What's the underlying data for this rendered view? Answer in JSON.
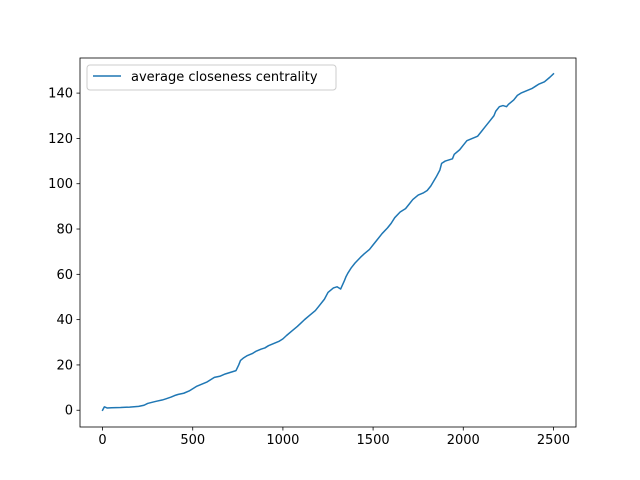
{
  "chart_data": {
    "type": "line",
    "title": "",
    "xlabel": "",
    "ylabel": "",
    "xlim": [
      -125,
      2625
    ],
    "ylim": [
      -7.4,
      155.5
    ],
    "x_ticks": [
      0,
      500,
      1000,
      1500,
      2000,
      2500
    ],
    "y_ticks": [
      0,
      20,
      40,
      60,
      80,
      100,
      120,
      140
    ],
    "x_tick_labels": [
      "0",
      "500",
      "1000",
      "1500",
      "2000",
      "2500"
    ],
    "y_tick_labels": [
      "0",
      "20",
      "40",
      "60",
      "80",
      "100",
      "120",
      "140"
    ],
    "grid": false,
    "legend_position": "upper-left",
    "series": [
      {
        "name": "average closeness centrality",
        "color": "#1f77b4",
        "x": [
          0,
          10,
          25,
          50,
          100,
          150,
          200,
          230,
          250,
          280,
          300,
          330,
          350,
          380,
          400,
          420,
          450,
          480,
          500,
          520,
          550,
          580,
          600,
          620,
          650,
          680,
          700,
          720,
          740,
          755,
          760,
          765,
          780,
          800,
          830,
          850,
          880,
          900,
          920,
          950,
          980,
          1000,
          1020,
          1050,
          1080,
          1100,
          1120,
          1150,
          1180,
          1200,
          1220,
          1230,
          1250,
          1280,
          1300,
          1320,
          1340,
          1350,
          1360,
          1380,
          1400,
          1430,
          1450,
          1480,
          1500,
          1520,
          1550,
          1580,
          1600,
          1620,
          1650,
          1680,
          1700,
          1720,
          1750,
          1780,
          1800,
          1820,
          1850,
          1870,
          1880,
          1900,
          1920,
          1940,
          1950,
          1980,
          2000,
          2020,
          2050,
          2080,
          2100,
          2120,
          2150,
          2170,
          2180,
          2200,
          2220,
          2240,
          2250,
          2280,
          2300,
          2320,
          2350,
          2380,
          2400,
          2420,
          2450,
          2480,
          2500
        ],
        "y": [
          0,
          1.5,
          1,
          1.1,
          1.2,
          1.4,
          1.7,
          2.2,
          3,
          3.6,
          4,
          4.5,
          5,
          5.8,
          6.5,
          7,
          7.5,
          8.5,
          9.5,
          10.5,
          11.5,
          12.5,
          13.5,
          14.5,
          15,
          16,
          16.5,
          17,
          17.5,
          20,
          21,
          22,
          23,
          24,
          25,
          26,
          27,
          27.5,
          28.5,
          29.5,
          30.5,
          31.5,
          33,
          35,
          37,
          38.5,
          40,
          42,
          44,
          46,
          48,
          49,
          52,
          54,
          54.5,
          53.5,
          57,
          59,
          60.5,
          63,
          65,
          67.5,
          69,
          71,
          73,
          75,
          78,
          80.5,
          82.5,
          85,
          87.5,
          89,
          91,
          93,
          95,
          96,
          97,
          99,
          103,
          106,
          109,
          110,
          110.5,
          111,
          113,
          115,
          117,
          119,
          120,
          121,
          123,
          125,
          128,
          130,
          132,
          134,
          134.5,
          134,
          135,
          137,
          139,
          140,
          141,
          142,
          143,
          144,
          145,
          147,
          148.5
        ]
      }
    ]
  }
}
